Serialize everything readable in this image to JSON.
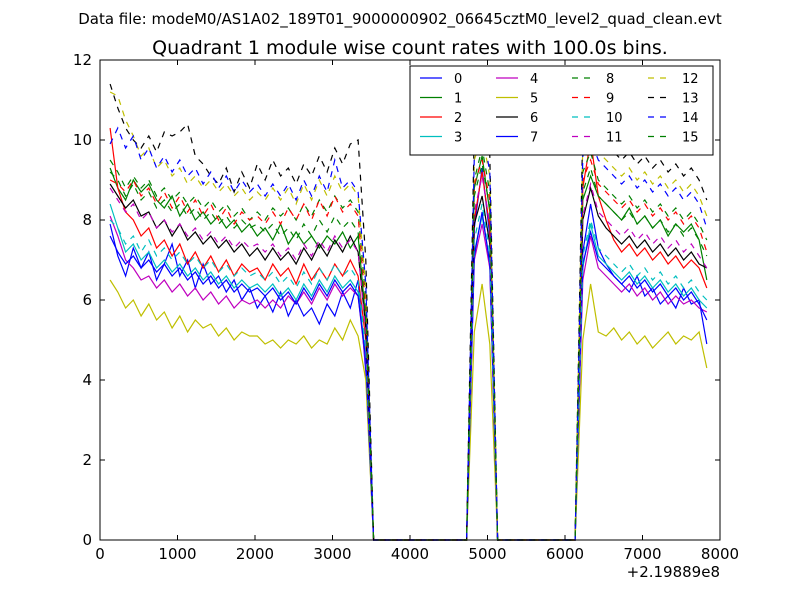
{
  "chart_data": {
    "type": "line",
    "supertitle": "Data file: modeM0/AS1A02_189T01_9000000902_06645cztM0_level2_quad_clean.evt",
    "title": "Quadrant 1 module wise count rates with 100.0s bins.",
    "xlabel": "",
    "ylabel": "",
    "x_offset_label": "+2.19889e8",
    "xlim": [
      0,
      8000
    ],
    "ylim": [
      0,
      12
    ],
    "xticks": [
      0,
      1000,
      2000,
      3000,
      4000,
      5000,
      6000,
      7000,
      8000
    ],
    "yticks": [
      0,
      2,
      4,
      6,
      8,
      10,
      12
    ],
    "grid": false,
    "legend_position": "top-right",
    "legend_columns": 4,
    "x": [
      130,
      230,
      330,
      430,
      530,
      630,
      730,
      830,
      930,
      1030,
      1130,
      1230,
      1330,
      1430,
      1530,
      1630,
      1730,
      1830,
      1930,
      2030,
      2130,
      2230,
      2330,
      2430,
      2530,
      2630,
      2730,
      2830,
      2930,
      3030,
      3130,
      3230,
      3330,
      3430,
      3530,
      4730,
      4830,
      4930,
      5030,
      5130,
      6130,
      6230,
      6330,
      6430,
      6530,
      6630,
      6730,
      6830,
      6930,
      7030,
      7130,
      7230,
      7330,
      7430,
      7530,
      7630,
      7730,
      7830
    ],
    "series": [
      {
        "name": "0",
        "color": "#0000ff",
        "dash": "solid",
        "values": [
          7.9,
          7.1,
          6.6,
          7.3,
          6.8,
          7.2,
          6.5,
          6.9,
          7.4,
          6.6,
          7.0,
          6.3,
          6.9,
          6.4,
          6.6,
          6.2,
          6.5,
          6.0,
          6.3,
          5.8,
          6.1,
          5.7,
          6.2,
          5.6,
          6.0,
          5.6,
          5.8,
          5.4,
          5.9,
          5.6,
          6.2,
          5.8,
          6.5,
          4.2,
          0,
          0,
          7.8,
          9.3,
          7.6,
          0,
          0,
          7.2,
          8.4,
          7.3,
          6.9,
          6.6,
          6.4,
          6.2,
          6.6,
          6.1,
          6.3,
          5.9,
          6.1,
          5.8,
          6.3,
          5.9,
          6.0,
          4.9
        ]
      },
      {
        "name": "1",
        "color": "#008000",
        "dash": "solid",
        "values": [
          9.3,
          8.8,
          8.5,
          9.0,
          8.7,
          8.9,
          8.5,
          8.3,
          8.6,
          8.1,
          8.4,
          8.0,
          8.2,
          7.9,
          8.1,
          7.8,
          8.0,
          7.7,
          7.9,
          7.6,
          7.8,
          7.5,
          7.9,
          7.4,
          7.7,
          7.4,
          7.6,
          7.3,
          7.6,
          7.4,
          7.7,
          7.3,
          7.6,
          5.5,
          0,
          0,
          8.8,
          9.6,
          8.2,
          0,
          0,
          8.5,
          9.1,
          8.6,
          8.4,
          8.2,
          8.0,
          8.3,
          7.9,
          8.1,
          7.8,
          8.0,
          7.6,
          7.9,
          7.7,
          7.9,
          7.5,
          6.5
        ]
      },
      {
        "name": "2",
        "color": "#ff0000",
        "dash": "solid",
        "values": [
          10.3,
          8.8,
          8.2,
          8.0,
          7.6,
          7.8,
          7.3,
          7.5,
          7.1,
          7.4,
          6.9,
          7.2,
          6.8,
          7.1,
          6.7,
          7.0,
          6.6,
          6.9,
          6.7,
          6.8,
          6.5,
          6.9,
          6.6,
          6.8,
          6.4,
          6.9,
          6.5,
          6.8,
          6.5,
          6.9,
          6.6,
          7.0,
          6.6,
          5.0,
          0,
          0,
          8.0,
          9.2,
          7.8,
          0,
          0,
          8.8,
          10.0,
          8.6,
          8.0,
          7.5,
          7.2,
          7.4,
          7.1,
          7.3,
          7.0,
          7.2,
          6.9,
          7.1,
          6.8,
          7.0,
          6.8,
          6.3
        ]
      },
      {
        "name": "3",
        "color": "#00bfbf",
        "dash": "solid",
        "values": [
          8.4,
          7.8,
          7.2,
          7.4,
          7.0,
          7.2,
          6.8,
          7.0,
          6.7,
          6.9,
          6.6,
          6.8,
          6.5,
          6.7,
          6.4,
          6.6,
          6.3,
          6.5,
          6.3,
          6.4,
          6.2,
          6.4,
          6.1,
          6.3,
          6.0,
          6.4,
          6.1,
          6.5,
          6.2,
          6.6,
          6.3,
          6.5,
          6.2,
          4.6,
          0,
          0,
          7.2,
          8.1,
          7.0,
          0,
          0,
          6.8,
          7.9,
          7.1,
          6.9,
          6.7,
          6.5,
          6.7,
          6.4,
          6.6,
          6.3,
          6.5,
          6.2,
          6.4,
          6.1,
          6.3,
          6.0,
          5.8
        ]
      },
      {
        "name": "4",
        "color": "#bf00bf",
        "dash": "solid",
        "values": [
          8.1,
          7.6,
          7.0,
          6.8,
          6.5,
          6.6,
          6.3,
          6.5,
          6.2,
          6.4,
          6.1,
          6.3,
          6.0,
          6.2,
          5.9,
          6.1,
          5.8,
          6.0,
          5.9,
          6.0,
          5.8,
          6.0,
          5.8,
          6.1,
          5.9,
          6.2,
          5.9,
          6.3,
          6.0,
          6.4,
          6.1,
          6.3,
          6.1,
          4.4,
          0,
          0,
          7.0,
          7.9,
          6.8,
          0,
          0,
          6.5,
          7.6,
          6.8,
          6.6,
          6.4,
          6.2,
          6.4,
          6.1,
          6.3,
          6.0,
          6.2,
          5.9,
          6.1,
          5.9,
          6.0,
          5.8,
          5.7
        ]
      },
      {
        "name": "5",
        "color": "#bfbf00",
        "dash": "solid",
        "values": [
          6.5,
          6.2,
          5.8,
          6.0,
          5.6,
          5.9,
          5.5,
          5.7,
          5.3,
          5.6,
          5.2,
          5.5,
          5.3,
          5.4,
          5.1,
          5.3,
          5.0,
          5.2,
          5.1,
          5.1,
          4.9,
          5.0,
          4.8,
          5.0,
          4.9,
          5.1,
          4.8,
          5.0,
          4.9,
          5.3,
          5.0,
          5.5,
          5.1,
          4.0,
          0,
          0,
          5.2,
          6.4,
          4.9,
          0,
          0,
          5.0,
          6.4,
          5.2,
          5.1,
          5.3,
          5.0,
          5.2,
          4.9,
          5.1,
          4.8,
          5.0,
          5.2,
          4.9,
          5.1,
          5.0,
          5.2,
          4.3
        ]
      },
      {
        "name": "6",
        "color": "#000000",
        "dash": "solid",
        "values": [
          8.9,
          8.6,
          8.3,
          8.5,
          8.1,
          8.2,
          7.8,
          8.0,
          7.6,
          7.9,
          7.5,
          7.7,
          7.4,
          7.6,
          7.3,
          7.5,
          7.2,
          7.4,
          7.1,
          7.3,
          7.0,
          7.3,
          7.0,
          7.2,
          6.9,
          7.3,
          7.0,
          7.4,
          7.1,
          7.5,
          7.2,
          7.6,
          7.2,
          5.3,
          0,
          0,
          7.9,
          8.6,
          7.4,
          0,
          0,
          8.0,
          8.8,
          8.1,
          7.8,
          7.6,
          7.4,
          7.6,
          7.3,
          7.5,
          7.2,
          7.4,
          7.1,
          7.3,
          7.0,
          7.2,
          6.9,
          6.8
        ]
      },
      {
        "name": "7",
        "color": "#0000ff",
        "dash": "solid",
        "values": [
          7.6,
          7.2,
          6.9,
          7.1,
          6.8,
          7.0,
          6.7,
          6.9,
          6.6,
          6.8,
          6.5,
          6.7,
          6.4,
          6.6,
          6.3,
          6.5,
          6.2,
          6.4,
          6.2,
          6.3,
          6.1,
          6.3,
          6.0,
          6.2,
          5.9,
          6.3,
          6.0,
          6.4,
          6.1,
          6.5,
          6.2,
          6.4,
          6.1,
          4.5,
          0,
          0,
          7.1,
          8.2,
          6.9,
          0,
          0,
          6.9,
          7.7,
          7.0,
          6.8,
          6.6,
          6.4,
          6.6,
          6.3,
          6.5,
          6.2,
          6.4,
          6.1,
          6.3,
          6.0,
          6.2,
          5.9,
          5.5
        ]
      },
      {
        "name": "8",
        "color": "#008000",
        "dash": "dashed",
        "values": [
          9.5,
          9.2,
          8.8,
          9.1,
          8.8,
          9.0,
          8.6,
          8.8,
          8.5,
          8.7,
          8.4,
          8.6,
          8.3,
          8.5,
          8.2,
          8.4,
          8.1,
          8.3,
          8.0,
          8.2,
          8.0,
          8.3,
          8.1,
          8.3,
          8.0,
          8.4,
          8.1,
          8.5,
          8.2,
          8.6,
          8.3,
          8.5,
          8.2,
          6.0,
          0,
          0,
          9.0,
          9.8,
          8.7,
          0,
          0,
          9.2,
          9.7,
          9.0,
          8.8,
          8.6,
          8.4,
          8.6,
          8.3,
          8.5,
          8.2,
          8.4,
          8.1,
          8.3,
          8.0,
          8.2,
          7.9,
          7.5
        ]
      },
      {
        "name": "9",
        "color": "#ff0000",
        "dash": "dashed",
        "values": [
          9.0,
          8.9,
          8.7,
          9.0,
          8.6,
          8.8,
          8.4,
          8.7,
          8.3,
          8.6,
          8.2,
          8.5,
          8.1,
          8.4,
          8.0,
          8.3,
          7.9,
          8.2,
          8.0,
          8.1,
          7.9,
          8.2,
          7.9,
          8.3,
          8.0,
          8.4,
          8.0,
          8.5,
          8.1,
          8.6,
          8.2,
          8.4,
          8.1,
          5.8,
          0,
          0,
          8.9,
          9.5,
          8.5,
          0,
          0,
          9.0,
          9.5,
          8.9,
          8.7,
          8.5,
          8.3,
          8.5,
          8.2,
          8.4,
          8.1,
          8.3,
          8.0,
          8.2,
          7.9,
          8.1,
          7.8,
          7.2
        ]
      },
      {
        "name": "10",
        "color": "#00bfbf",
        "dash": "dashed",
        "values": [
          8.0,
          7.8,
          7.4,
          7.6,
          7.2,
          7.5,
          7.1,
          7.3,
          7.0,
          7.2,
          6.9,
          7.1,
          6.8,
          7.0,
          6.7,
          6.9,
          6.6,
          6.8,
          6.6,
          6.7,
          6.5,
          6.7,
          6.4,
          6.6,
          6.3,
          6.7,
          6.4,
          6.8,
          6.5,
          6.9,
          6.6,
          6.8,
          6.5,
          4.8,
          0,
          0,
          7.5,
          8.4,
          7.2,
          0,
          0,
          7.1,
          8.0,
          7.3,
          7.1,
          6.9,
          6.7,
          6.9,
          6.6,
          6.8,
          6.5,
          6.7,
          6.4,
          6.6,
          6.3,
          6.5,
          6.2,
          6.0
        ]
      },
      {
        "name": "11",
        "color": "#bf00bf",
        "dash": "dashed",
        "values": [
          8.8,
          8.5,
          8.2,
          8.4,
          8.0,
          8.2,
          7.8,
          8.0,
          7.7,
          7.9,
          7.6,
          7.8,
          7.5,
          7.7,
          7.4,
          7.6,
          7.3,
          7.5,
          7.3,
          7.4,
          7.2,
          7.4,
          7.1,
          7.3,
          7.0,
          7.4,
          7.1,
          7.5,
          7.2,
          7.6,
          7.3,
          7.5,
          7.2,
          5.2,
          0,
          0,
          8.2,
          9.1,
          7.9,
          0,
          0,
          8.1,
          8.9,
          8.2,
          8.0,
          7.8,
          7.6,
          7.8,
          7.5,
          7.7,
          7.4,
          7.6,
          7.3,
          7.5,
          7.2,
          7.4,
          7.1,
          6.8
        ]
      },
      {
        "name": "12",
        "color": "#bfbf00",
        "dash": "dashed",
        "values": [
          11.2,
          11.1,
          10.5,
          10.1,
          9.6,
          9.8,
          9.3,
          9.5,
          9.1,
          9.3,
          8.9,
          9.1,
          8.8,
          9.0,
          8.7,
          8.9,
          8.6,
          8.8,
          8.5,
          8.7,
          8.5,
          8.8,
          8.5,
          8.8,
          8.4,
          8.9,
          8.5,
          9.0,
          8.6,
          9.1,
          8.7,
          8.9,
          8.6,
          6.3,
          0,
          0,
          9.5,
          10.1,
          9.1,
          0,
          0,
          9.9,
          10.2,
          9.7,
          9.5,
          9.3,
          9.1,
          9.3,
          9.0,
          9.2,
          8.9,
          9.1,
          8.8,
          9.0,
          8.7,
          8.9,
          8.6,
          8.1
        ]
      },
      {
        "name": "13",
        "color": "#000000",
        "dash": "dashed",
        "values": [
          11.4,
          10.8,
          10.3,
          10.0,
          9.8,
          10.1,
          9.7,
          10.2,
          10.1,
          10.2,
          10.4,
          9.6,
          9.4,
          9.1,
          8.9,
          9.3,
          8.7,
          9.2,
          8.8,
          9.4,
          9.0,
          9.5,
          9.1,
          9.3,
          8.9,
          9.4,
          9.1,
          9.6,
          9.2,
          9.8,
          9.4,
          9.9,
          10.0,
          7.0,
          0,
          0,
          10.3,
          11.1,
          9.6,
          0,
          0,
          10.4,
          10.9,
          10.1,
          9.9,
          9.7,
          9.5,
          9.7,
          9.4,
          9.6,
          9.3,
          9.5,
          9.2,
          9.4,
          9.1,
          9.3,
          9.0,
          8.5
        ]
      },
      {
        "name": "14",
        "color": "#0000ff",
        "dash": "dashed",
        "values": [
          9.9,
          10.3,
          9.8,
          10.1,
          9.5,
          9.8,
          9.3,
          9.6,
          9.2,
          9.5,
          9.1,
          9.3,
          8.9,
          9.2,
          8.8,
          9.1,
          8.7,
          9.0,
          8.7,
          8.9,
          8.6,
          8.9,
          8.6,
          8.9,
          8.5,
          9.0,
          8.6,
          9.1,
          8.7,
          9.5,
          8.8,
          9.0,
          8.7,
          6.4,
          0,
          0,
          9.6,
          10.3,
          9.2,
          0,
          0,
          9.6,
          10.0,
          9.5,
          9.3,
          9.1,
          8.9,
          9.1,
          8.8,
          9.0,
          8.7,
          8.9,
          8.6,
          8.8,
          8.5,
          8.7,
          8.4,
          7.8
        ]
      },
      {
        "name": "15",
        "color": "#008000",
        "dash": "dashed",
        "values": [
          9.2,
          9.0,
          8.6,
          8.9,
          8.5,
          8.7,
          8.3,
          8.5,
          8.2,
          8.4,
          8.1,
          8.3,
          8.0,
          8.2,
          7.9,
          8.1,
          7.8,
          8.0,
          7.8,
          7.9,
          7.7,
          7.9,
          7.6,
          7.8,
          7.5,
          7.9,
          7.6,
          8.0,
          7.7,
          8.1,
          7.8,
          8.0,
          7.7,
          5.6,
          0,
          0,
          8.6,
          9.4,
          8.3,
          0,
          0,
          8.7,
          9.3,
          8.6,
          8.4,
          8.2,
          8.0,
          8.2,
          7.9,
          8.1,
          7.8,
          8.0,
          7.7,
          7.9,
          7.6,
          7.8,
          7.5,
          7.1
        ]
      }
    ]
  }
}
